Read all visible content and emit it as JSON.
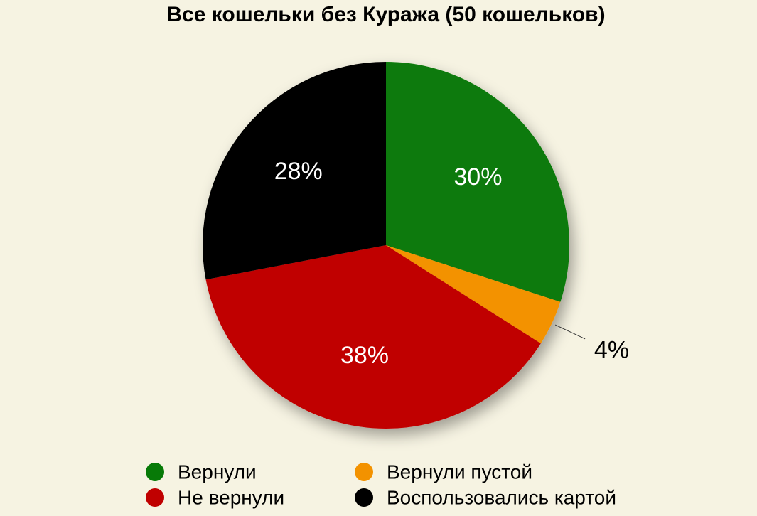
{
  "chart_data": {
    "type": "pie",
    "title": "Все кошельки без Куража (50 кошельков)",
    "categories": [
      "Вернули",
      "Вернули пустой",
      "Не вернули",
      "Воспользовались картой"
    ],
    "values": [
      30,
      4,
      38,
      28
    ],
    "value_labels": [
      "30%",
      "4%",
      "38%",
      "28%"
    ],
    "colors": [
      "#077a07",
      "#f39200",
      "#c00000",
      "#000000"
    ],
    "legend": "bottom"
  }
}
